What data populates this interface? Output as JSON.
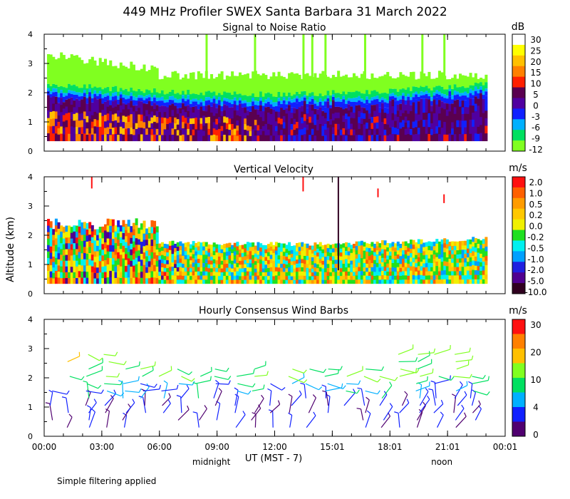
{
  "figure": {
    "title": "449 MHz Profiler SWEX Santa Barbara 31 March 2022",
    "ylabel": "Altitude (km)",
    "xlabel": "UT  (MST - 7)",
    "x_ticks": [
      "00:00",
      "03:00",
      "06:00",
      "09:00",
      "12:00",
      "15:01",
      "18:01",
      "21:01",
      "00:01"
    ],
    "time_markers": [
      {
        "label": "midnight",
        "tick_index": 3
      },
      {
        "label": "noon",
        "tick_index": 7
      }
    ],
    "footnote": "Simple filtering applied"
  },
  "chart_data": [
    {
      "type": "heatmap",
      "title": "Signal to Noise Ratio",
      "unit": "dB",
      "ylim": [
        0,
        4
      ],
      "y_ticks": [
        "0",
        "1",
        "2",
        "3",
        "4"
      ],
      "colorbar": {
        "labels": [
          "30",
          "25",
          "20",
          "15",
          "10",
          "5",
          "0",
          "-3",
          "-6",
          "-9",
          "-12"
        ],
        "colors": [
          "#ffffff",
          "#ffff00",
          "#ffc000",
          "#ff8000",
          "#ff2000",
          "#5a0050",
          "#5000a0",
          "#1020ff",
          "#00b0ff",
          "#00e060",
          "#80ff20"
        ]
      }
    },
    {
      "type": "heatmap",
      "title": "Vertical Velocity",
      "unit": "m/s",
      "ylim": [
        0,
        4
      ],
      "y_ticks": [
        "0",
        "1",
        "2",
        "3",
        "4"
      ],
      "colorbar": {
        "labels": [
          "2.0",
          "1.0",
          "0.5",
          "0.2",
          "0.0",
          "-0.2",
          "-0.5",
          "-1.0",
          "-2.0",
          "-5.0",
          "-10.0"
        ],
        "colors": [
          "#ff1010",
          "#ff6000",
          "#ff9c00",
          "#ffc800",
          "#f0f000",
          "#20e020",
          "#00f0f0",
          "#00a0ff",
          "#2020e0",
          "#500090",
          "#300020"
        ]
      }
    },
    {
      "type": "scatter",
      "title": "Hourly Consensus Wind Barbs",
      "unit": "m/s",
      "ylim": [
        0,
        4
      ],
      "y_ticks": [
        "0",
        "1",
        "2",
        "3",
        "4"
      ],
      "colorbar": {
        "labels": [
          "30",
          "20",
          "10",
          "4",
          "0"
        ],
        "colors": [
          "#ff1010",
          "#ff8000",
          "#ffc000",
          "#80ff20",
          "#00e060",
          "#00b0ff",
          "#1020ff",
          "#500070"
        ]
      }
    }
  ]
}
